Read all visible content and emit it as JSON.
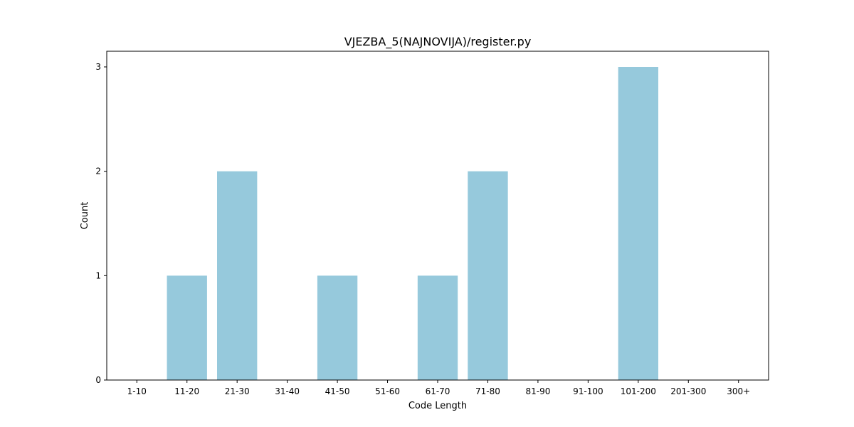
{
  "chart_data": {
    "type": "bar",
    "title": "VJEZBA_5(NAJNOVIJA)/register.py",
    "xlabel": "Code Length",
    "ylabel": "Count",
    "categories": [
      "1-10",
      "11-20",
      "21-30",
      "31-40",
      "41-50",
      "51-60",
      "61-70",
      "71-80",
      "81-90",
      "91-100",
      "101-200",
      "201-300",
      "300+"
    ],
    "values": [
      0,
      1,
      2,
      0,
      1,
      0,
      1,
      2,
      0,
      0,
      3,
      0,
      0
    ],
    "ylim": [
      0,
      3.15
    ],
    "yticks": [
      0,
      1,
      2,
      3
    ],
    "bar_color": "#96c9dc",
    "grid": false,
    "legend": "none"
  }
}
